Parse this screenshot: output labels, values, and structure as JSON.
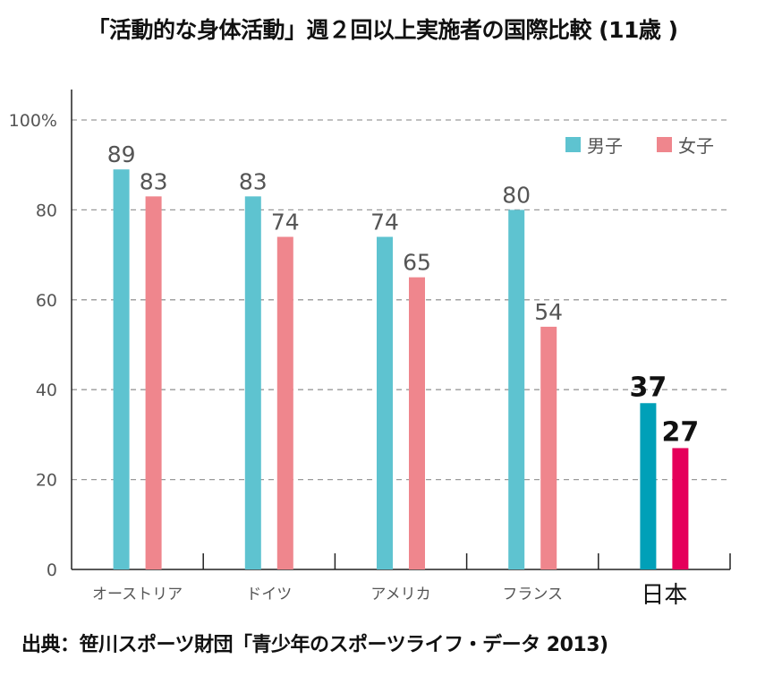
{
  "chart_data": {
    "type": "bar",
    "title": "「活動的な身体活動」週２回以上実施者の国際比較 (11歳 )",
    "source": "出典：笹川スポーツ財団「青少年のスポーツライフ・データ 2013)",
    "xlabel": "",
    "ylabel": "",
    "ylim": [
      0,
      100
    ],
    "yticks": [
      0,
      20,
      40,
      60,
      80,
      100
    ],
    "ytick_labels": [
      "0",
      "20",
      "40",
      "60",
      "80",
      "100%"
    ],
    "grid": true,
    "legend_position": "top-right",
    "categories": [
      "オーストリア",
      "ドイツ",
      "アメリカ",
      "フランス",
      "日本"
    ],
    "highlight_category": "日本",
    "series": [
      {
        "name": "男子",
        "color": "#5ec3d0",
        "highlight_color": "#00a0b8",
        "values": [
          89,
          83,
          74,
          80,
          37
        ]
      },
      {
        "name": "女子",
        "color": "#ef868d",
        "highlight_color": "#e5005a",
        "values": [
          83,
          74,
          65,
          54,
          27
        ]
      }
    ]
  }
}
